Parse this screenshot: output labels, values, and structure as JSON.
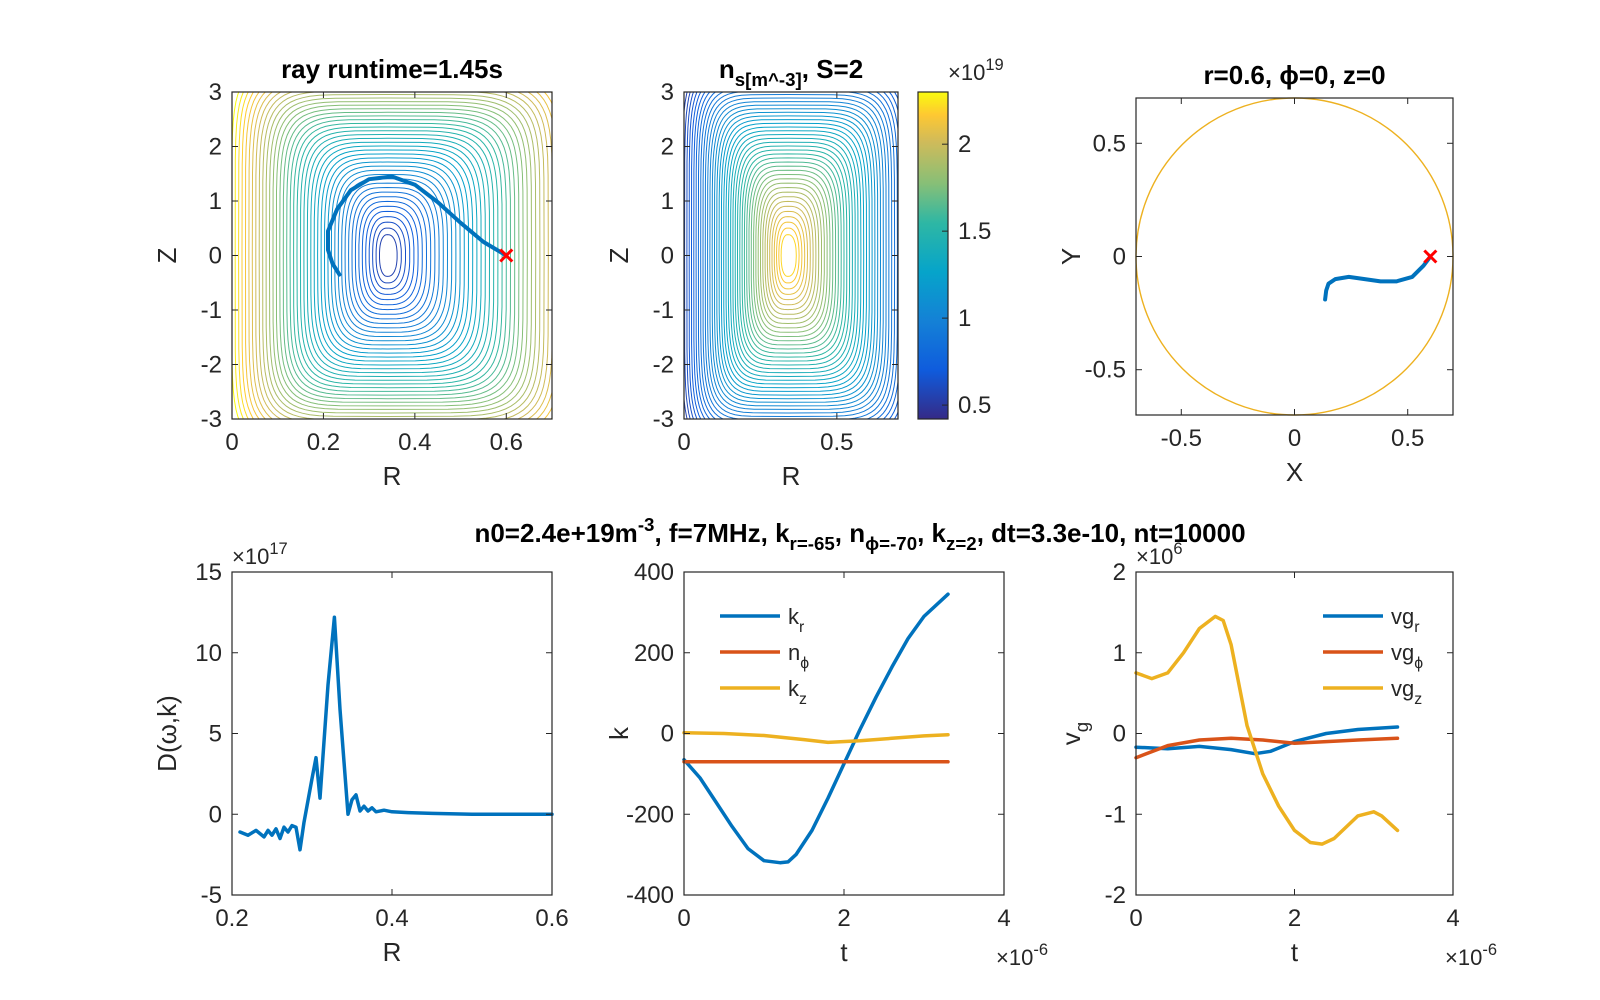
{
  "figure": {
    "supertitle": "n0=2.4e+19m^-3, f=7MHz, k_r=-65, n_ϕ=-70, k_z=2, dt=3.3e-10, nt=10000"
  },
  "chart_data": [
    {
      "id": "ray_contour",
      "type": "contour",
      "title": "ray runtime=1.45s",
      "xlabel": "R",
      "ylabel": "Z",
      "xlim": [
        0,
        0.7
      ],
      "ylim": [
        -3,
        3
      ],
      "xticks": [
        0,
        0.2,
        0.4,
        0.6
      ],
      "yticks": [
        -3,
        -2,
        -1,
        0,
        1,
        2,
        3
      ],
      "contour_center": {
        "R": 0.34,
        "Z": 0
      },
      "ray_path": {
        "R": [
          0.6,
          0.55,
          0.5,
          0.45,
          0.4,
          0.35,
          0.3,
          0.26,
          0.23,
          0.21,
          0.21,
          0.22,
          0.235
        ],
        "Z": [
          0,
          0.25,
          0.6,
          0.98,
          1.3,
          1.45,
          1.4,
          1.2,
          0.85,
          0.45,
          0.1,
          -0.15,
          -0.35
        ]
      },
      "start_marker": {
        "R": 0.6,
        "Z": 0,
        "color": "#ff0000"
      }
    },
    {
      "id": "density_contour",
      "type": "contour",
      "title": "n_s[m^-3], S=2",
      "xlabel": "R",
      "ylabel": "Z",
      "xlim": [
        0,
        0.7
      ],
      "ylim": [
        -3,
        3
      ],
      "xticks": [
        0,
        0.5
      ],
      "yticks": [
        -3,
        -2,
        -1,
        0,
        1,
        2,
        3
      ],
      "contour_center": {
        "R": 0.34,
        "Z": 0
      },
      "colorbar": {
        "min": 0.42,
        "max": 2.3,
        "ticks": [
          0.5,
          1,
          1.5,
          2
        ],
        "exponent": "19",
        "multiplier": "×10"
      }
    },
    {
      "id": "top_view",
      "type": "line",
      "title": "r=0.6, ϕ=0, z=0",
      "xlabel": "X",
      "ylabel": "Y",
      "xlim": [
        -0.7,
        0.7
      ],
      "ylim": [
        -0.7,
        0.7
      ],
      "xticks": [
        -0.5,
        0,
        0.5
      ],
      "yticks": [
        -0.5,
        0,
        0.5
      ],
      "circle_radius": 0.7,
      "ray_path": {
        "X": [
          0.6,
          0.57,
          0.52,
          0.45,
          0.38,
          0.31,
          0.24,
          0.18,
          0.15,
          0.14,
          0.135
        ],
        "Y": [
          0,
          -0.04,
          -0.09,
          -0.11,
          -0.11,
          -0.1,
          -0.09,
          -0.1,
          -0.12,
          -0.15,
          -0.19
        ]
      },
      "start_marker": {
        "X": 0.6,
        "Y": 0,
        "color": "#ff0000"
      }
    },
    {
      "id": "dispersion",
      "type": "line",
      "title": "",
      "xlabel": "R",
      "ylabel": "D(ω,k)",
      "xlim": [
        0.2,
        0.6
      ],
      "ylim": [
        -5,
        15
      ],
      "xticks": [
        0.2,
        0.4,
        0.6
      ],
      "yticks": [
        -5,
        0,
        5,
        10,
        15
      ],
      "exponent": "17",
      "multiplier": "×10",
      "series": [
        {
          "x": [
            0.21,
            0.22,
            0.23,
            0.24,
            0.245,
            0.25,
            0.255,
            0.26,
            0.265,
            0.27,
            0.275,
            0.28,
            0.285,
            0.29,
            0.3,
            0.305,
            0.31,
            0.32,
            0.328,
            0.335,
            0.345,
            0.35,
            0.355,
            0.36,
            0.365,
            0.37,
            0.375,
            0.38,
            0.39,
            0.4,
            0.42,
            0.45,
            0.5,
            0.55,
            0.6
          ],
          "y": [
            -1.1,
            -1.3,
            -1.0,
            -1.4,
            -1.0,
            -1.3,
            -0.9,
            -1.5,
            -0.8,
            -1.1,
            -0.7,
            -0.8,
            -2.2,
            -0.5,
            2.2,
            3.5,
            1.0,
            8.0,
            12.2,
            6.5,
            0.0,
            0.9,
            1.2,
            0.2,
            0.5,
            0.2,
            0.4,
            0.15,
            0.25,
            0.15,
            0.1,
            0.05,
            0.0,
            0.0,
            0.0
          ]
        }
      ]
    },
    {
      "id": "wavenumber",
      "type": "line",
      "title": "",
      "xlabel": "t",
      "ylabel": "k",
      "xlim": [
        0,
        4
      ],
      "ylim": [
        -400,
        400
      ],
      "xticks": [
        0,
        2,
        4
      ],
      "yticks": [
        -400,
        -200,
        0,
        200,
        400
      ],
      "x_exponent": "-6",
      "multiplier": "×10",
      "legend_position": "top-left",
      "series": [
        {
          "name": "k_r",
          "color": "#0072bd",
          "x": [
            0,
            0.2,
            0.4,
            0.6,
            0.8,
            1.0,
            1.2,
            1.3,
            1.4,
            1.6,
            1.8,
            2.0,
            2.2,
            2.4,
            2.6,
            2.8,
            3.0,
            3.3
          ],
          "y": [
            -65,
            -110,
            -170,
            -230,
            -285,
            -315,
            -320,
            -318,
            -300,
            -240,
            -160,
            -75,
            10,
            90,
            165,
            235,
            290,
            345
          ]
        },
        {
          "name": "n_ϕ",
          "color": "#d95319",
          "x": [
            0,
            3.3
          ],
          "y": [
            -70,
            -70
          ]
        },
        {
          "name": "k_z",
          "color": "#edb120",
          "x": [
            0,
            0.5,
            1.0,
            1.5,
            1.8,
            2.2,
            2.6,
            3.0,
            3.3
          ],
          "y": [
            2,
            0,
            -5,
            -15,
            -22,
            -18,
            -12,
            -6,
            -3
          ]
        }
      ]
    },
    {
      "id": "group_velocity",
      "type": "line",
      "title": "",
      "xlabel": "t",
      "ylabel": "v_g",
      "xlim": [
        0,
        4
      ],
      "ylim": [
        -2,
        2
      ],
      "xticks": [
        0,
        2,
        4
      ],
      "yticks": [
        -2,
        -1,
        0,
        1,
        2
      ],
      "x_exponent": "-6",
      "y_exponent": "6",
      "multiplier": "×10",
      "legend_position": "top-right",
      "series": [
        {
          "name": "vg_r",
          "color": "#0072bd",
          "x": [
            0,
            0.4,
            0.8,
            1.2,
            1.5,
            1.7,
            2.0,
            2.4,
            2.8,
            3.3
          ],
          "y": [
            -0.17,
            -0.19,
            -0.16,
            -0.2,
            -0.25,
            -0.22,
            -0.1,
            0.0,
            0.05,
            0.08
          ]
        },
        {
          "name": "vg_ϕ",
          "color": "#d95319",
          "x": [
            0,
            0.4,
            0.8,
            1.2,
            1.6,
            2.0,
            2.4,
            2.8,
            3.3
          ],
          "y": [
            -0.3,
            -0.15,
            -0.08,
            -0.06,
            -0.08,
            -0.12,
            -0.1,
            -0.08,
            -0.06
          ]
        },
        {
          "name": "vg_z",
          "color": "#edb120",
          "x": [
            0,
            0.2,
            0.4,
            0.6,
            0.8,
            1.0,
            1.1,
            1.2,
            1.4,
            1.6,
            1.8,
            2.0,
            2.2,
            2.35,
            2.5,
            2.8,
            3.0,
            3.1,
            3.3
          ],
          "y": [
            0.75,
            0.68,
            0.75,
            1.0,
            1.3,
            1.45,
            1.4,
            1.1,
            0.1,
            -0.5,
            -0.9,
            -1.2,
            -1.35,
            -1.37,
            -1.3,
            -1.02,
            -0.97,
            -1.02,
            -1.2
          ]
        }
      ]
    }
  ]
}
